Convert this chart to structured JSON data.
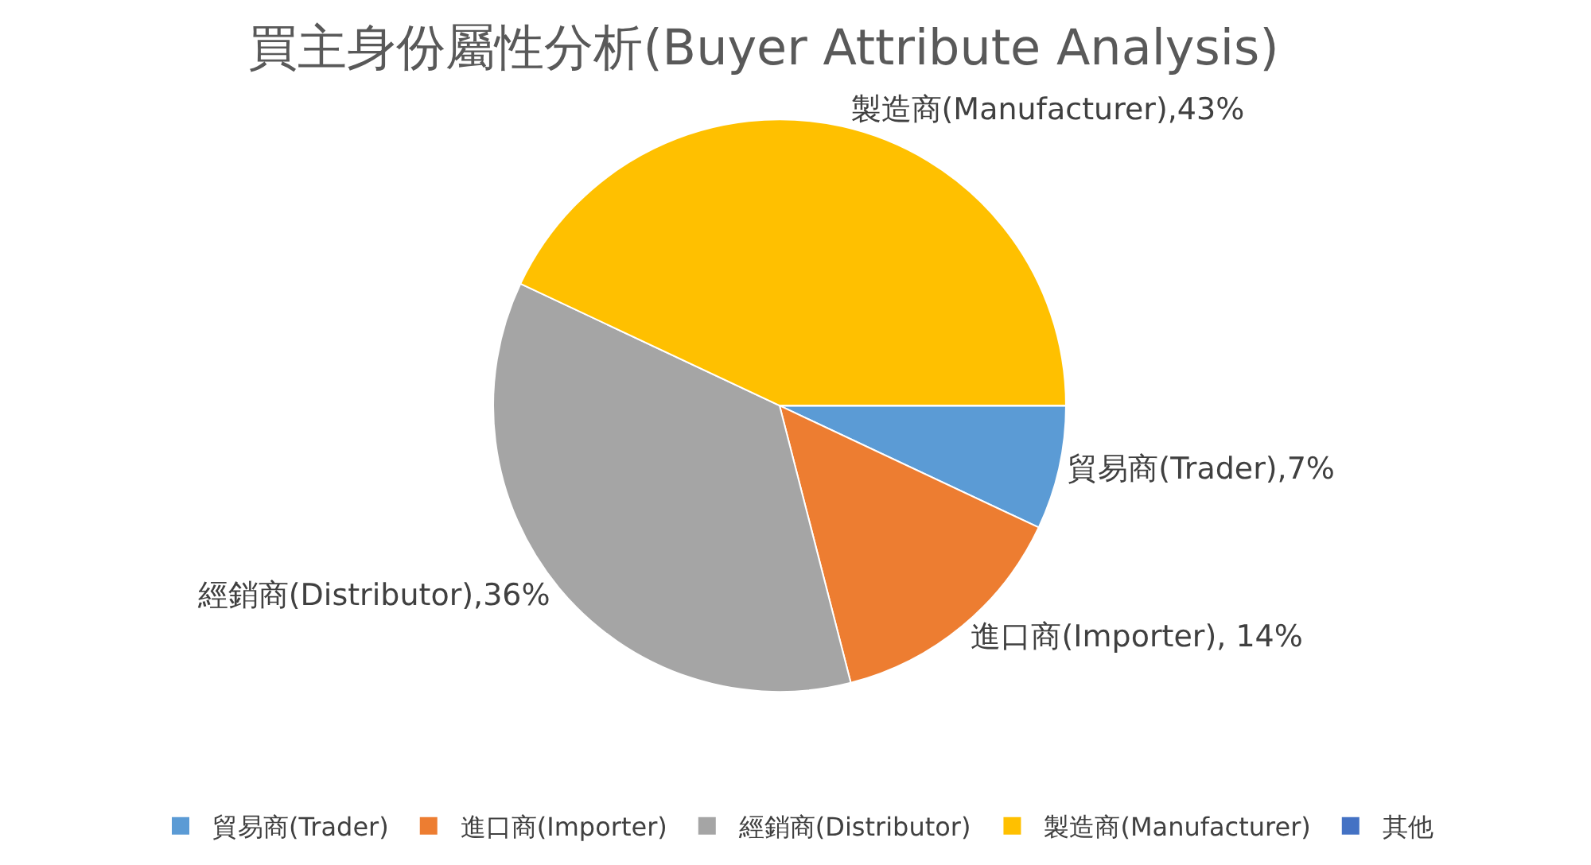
{
  "chart_data": {
    "type": "pie",
    "title": "買主身份屬性分析(Buyer Attribute Analysis)",
    "categories": [
      "貿易商(Trader)",
      "進口商(Importer)",
      "經銷商(Distributor)",
      "製造商(Manufacturer)",
      "其他"
    ],
    "values": [
      7,
      14,
      36,
      43,
      0
    ],
    "colors": [
      "#5b9bd5",
      "#ed7d31",
      "#a5a5a5",
      "#ffc000",
      "#4472c4"
    ],
    "value_labels": [
      "貿易商(Trader),7%",
      "進口商(Importer), 14%",
      "經銷商(Distributor),36%",
      "製造商(Manufacturer),43%",
      null
    ],
    "legend": "bottom"
  }
}
